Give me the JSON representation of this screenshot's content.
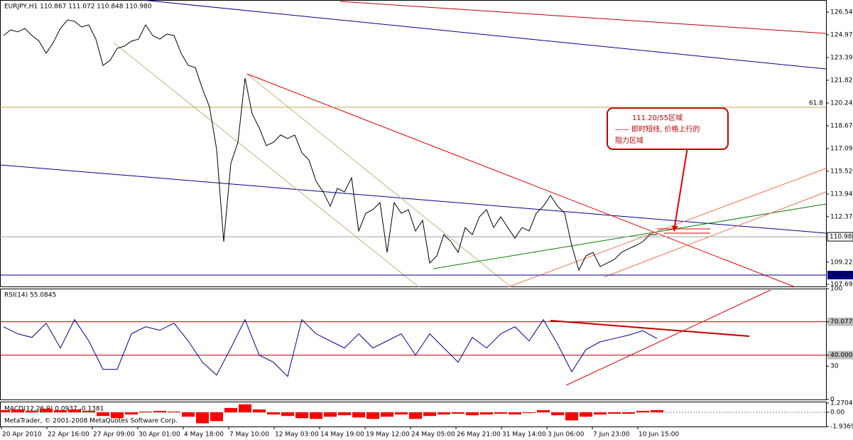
{
  "chart_data": [
    {
      "type": "line",
      "title": "EURJPY,H1  110.867 111.072 110.848 110.980",
      "ylim": [
        107.49,
        127.38
      ],
      "yticks": [
        126.545,
        {
          "value": 124.97,
          "label": "124.970"
        },
        123.395,
        {
          "value": 121.82,
          "label": "121.820"
        },
        120.245,
        {
          "value": 118.67,
          "label": "118.670"
        },
        117.095,
        {
          "value": 115.52,
          "label": "115.520"
        },
        113.945,
        {
          "value": 112.37,
          "label": "112.370"
        },
        109.225,
        {
          "value": 107.69,
          "label": "107.690"
        }
      ],
      "current_price": {
        "value": 110.98,
        "label": "110.980"
      },
      "support_line": 108.327,
      "fib_level": {
        "value": 119.95,
        "label": "61.8"
      },
      "series": [
        {
          "name": "EURJPY",
          "color": "#000000",
          "values": [
            124.92,
            125.31,
            125.17,
            125.41,
            124.92,
            124.53,
            123.69,
            124.43,
            125.41,
            126.0,
            125.9,
            125.51,
            125.66,
            124.67,
            122.85,
            123.2,
            124.03,
            124.18,
            124.53,
            124.67,
            125.66,
            124.92,
            124.67,
            125.02,
            124.92,
            123.69,
            122.85,
            122.7,
            121.23,
            119.97,
            117.04,
            110.64,
            116.06,
            117.53,
            121.97,
            119.5,
            118.52,
            117.29,
            117.53,
            118.03,
            117.78,
            118.03,
            116.8,
            116.3,
            114.83,
            114.09,
            113.1,
            114.33,
            114.09,
            115.07,
            111.38,
            112.61,
            112.86,
            113.35,
            109.9,
            113.35,
            112.61,
            112.86,
            111.38,
            112.12,
            109.16,
            109.66,
            111.13,
            110.64,
            109.9,
            111.62,
            111.13,
            112.36,
            112.86,
            111.62,
            112.36,
            111.62,
            110.89,
            111.62,
            111.38,
            112.61,
            113.1,
            113.84,
            113.1,
            112.61,
            110.37,
            108.67,
            109.66,
            109.9,
            108.92,
            109.16,
            109.41,
            109.9,
            110.15,
            110.37,
            110.64,
            111.13,
            111.13
          ]
        }
      ],
      "date_labels": [
        "20 Apr 2010",
        "22 Apr 16:00",
        "27 Apr 09:00",
        "30 Apr 01:00",
        "4 May 18:00",
        "7 May 10:00",
        "12 May 03:00",
        "14 May 19:00",
        "19 May 12:00",
        "24 May 05:00",
        "26 May 21:00",
        "31 May 14:00",
        "3 Jun 06:00",
        "7 Jun 23:00",
        "10 Jun 15:00"
      ],
      "annotation": [
        "111.20/55区域",
        "—— 即时短线, 价格上行的",
        "阻力区域"
      ],
      "footer": "MetaTrader, © 2001-2008 MetaQuotes Software Corp."
    },
    {
      "type": "line",
      "title": "RSI(14) 55.0845",
      "ylim": [
        0,
        100
      ],
      "yticks": [
        100,
        70.077,
        {
          "value": 40,
          "label": "40.000"
        },
        30,
        0
      ],
      "levels": [
        70.077,
        40
      ],
      "series": [
        {
          "name": "RSI(14)",
          "color": "#00008b",
          "values": [
            65.6,
            59.2,
            56.0,
            68.8,
            46.4,
            72.0,
            52.8,
            27.2,
            27.2,
            59.2,
            65.6,
            62.4,
            68.8,
            52.8,
            33.6,
            22.0,
            46.4,
            72.0,
            40.0,
            33.6,
            20.8,
            72.0,
            59.2,
            52.8,
            46.4,
            59.2,
            46.4,
            52.8,
            59.2,
            40.0,
            59.2,
            46.4,
            33.6,
            56.0,
            46.4,
            59.2,
            65.6,
            52.8,
            72.0,
            50.0,
            25.0,
            45.0,
            52.0,
            55.0,
            58.0,
            62.0,
            55.0
          ]
        }
      ]
    },
    {
      "type": "bar",
      "title": "MACD(12,26,9) 0.0937 -0.1381",
      "ylim": [
        -1.9369,
        1.2704
      ],
      "yticks": [
        1.2704,
        {
          "value": 0,
          "label": "0.00"
        },
        -1.9369
      ],
      "color": "#ff0000",
      "values": [
        0.3,
        0.4,
        0.2,
        0.5,
        0.3,
        0.4,
        0.2,
        -0.5,
        -0.8,
        -0.3,
        0.1,
        0.2,
        0.1,
        -0.6,
        -1.5,
        -1.2,
        0.6,
        1.1,
        0.4,
        -0.3,
        -0.5,
        -0.8,
        -0.9,
        -0.6,
        -0.4,
        -0.7,
        -0.9,
        -0.6,
        -0.3,
        -0.9,
        -0.5,
        -0.3,
        -0.2,
        -0.4,
        -0.3,
        -0.2,
        -0.3,
        -0.1,
        0.3,
        -0.4,
        -1.1,
        -0.6,
        -0.3,
        -0.2,
        -0.2,
        0.2,
        0.3
      ]
    }
  ]
}
